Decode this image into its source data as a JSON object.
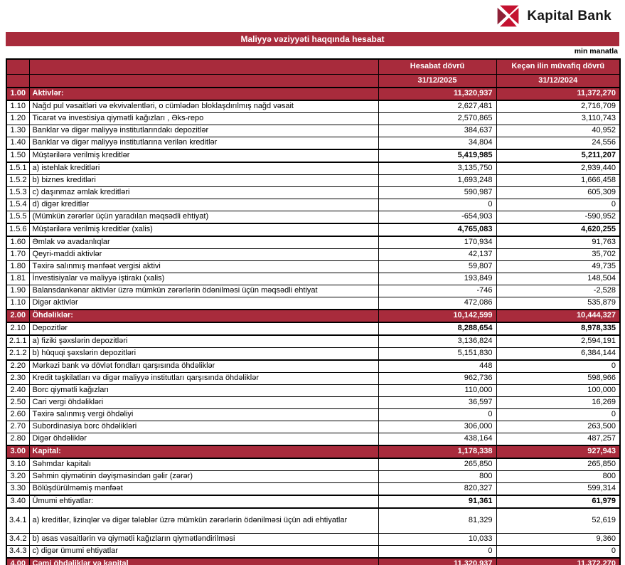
{
  "brand": {
    "name": "Kapital Bank"
  },
  "title": "Maliyyə vəziyyəti haqqında hesabat",
  "unit_note": "min manatla",
  "colors": {
    "accent_red": "#A82B3C",
    "logo_bright_red": "#C41230",
    "logo_dark_red": "#8E2137"
  },
  "table": {
    "col_headers": {
      "period_current": "Hesabat dövrü",
      "period_prior": "Keçən ilin müvafiq dövrü",
      "date_current": "31/12/2025",
      "date_prior": "31/12/2024"
    },
    "rows": [
      {
        "no": "1.00",
        "label": "Aktivlər:",
        "v1": "11,320,937",
        "v2": "11,372,270",
        "style": "section"
      },
      {
        "no": "1.10",
        "label": "Nağd pul vəsaitləri və ekvivalentləri, o cümlədən bloklaşdırılmış nağd vəsait",
        "v1": "2,627,481",
        "v2": "2,716,709"
      },
      {
        "no": "1.20",
        "label": "Ticarət və investisiya qiymətli kağızları , Əks-repo",
        "v1": "2,570,865",
        "v2": "3,110,743"
      },
      {
        "no": "1.30",
        "label": "Banklar və digər maliyyə institutlarındakı depozitlər",
        "v1": "384,637",
        "v2": "40,952"
      },
      {
        "no": "1.40",
        "label": "Banklar və digər maliyyə institutlarına verilən kreditlər",
        "v1": "34,804",
        "v2": "24,556"
      },
      {
        "no": "1.50",
        "label": "Müştərilərə verilmiş kreditlər",
        "v1": "5,419,985",
        "v2": "5,211,207",
        "style": "subtotal"
      },
      {
        "no": "1.5.1",
        "label": "a) istehlak kreditləri",
        "v1": "3,135,750",
        "v2": "2,939,440"
      },
      {
        "no": "1.5.2",
        "label": "b) biznes kreditləri",
        "v1": "1,693,248",
        "v2": "1,666,458"
      },
      {
        "no": "1.5.3",
        "label": "c) daşınmaz əmlak kreditləri",
        "v1": "590,987",
        "v2": "605,309"
      },
      {
        "no": "1.5.4",
        "label": "d) digər kreditlər",
        "v1": "0",
        "v2": "0"
      },
      {
        "no": "1.5.5",
        "label": "(Mümkün zərərlər üçün yaradılan məqsədli ehtiyat)",
        "v1": "-654,903",
        "v2": "-590,952"
      },
      {
        "no": "1.5.6",
        "label": "Müştərilərə verilmiş kreditlər (xalis)",
        "v1": "4,765,083",
        "v2": "4,620,255",
        "style": "subtotal"
      },
      {
        "no": "1.60",
        "label": "Əmlak və avadanlıqlar",
        "v1": "170,934",
        "v2": "91,763"
      },
      {
        "no": "1.70",
        "label": "Qeyri-maddi aktivlər",
        "v1": "42,137",
        "v2": "35,702"
      },
      {
        "no": "1.80",
        "label": "Təxirə salınmış mənfəət vergisi aktivi",
        "v1": "59,807",
        "v2": "49,735"
      },
      {
        "no": "1.81",
        "label": "İnvestisiyalar və maliyyə iştirakı (xalis)",
        "v1": "193,849",
        "v2": "148,504"
      },
      {
        "no": "1.90",
        "label": "Balansdankənar aktivlər üzrə mümkün zərərlərin ödənilməsi üçün məqsədli ehtiyat",
        "v1": "-746",
        "v2": "-2,528"
      },
      {
        "no": "1.10",
        "label": "Digər aktivlər",
        "v1": "472,086",
        "v2": "535,879"
      },
      {
        "no": "2.00",
        "label": "Öhdəliklər:",
        "v1": "10,142,599",
        "v2": "10,444,327",
        "style": "section"
      },
      {
        "no": "2.10",
        "label": "Depozitlər",
        "v1": "8,288,654",
        "v2": "8,978,335",
        "style": "subtotal"
      },
      {
        "no": "2.1.1",
        "label": "a) fiziki şəxslərin depozitləri",
        "v1": "3,136,824",
        "v2": "2,594,191"
      },
      {
        "no": "2.1.2",
        "label": "b) hüquqi şəxslərin depozitləri",
        "v1": "5,151,830",
        "v2": "6,384,144"
      },
      {
        "no": "2.20",
        "label": "Mərkəzi bank və dövlət fondları qarşısında öhdəliklər",
        "v1": "448",
        "v2": "0",
        "style": "sep"
      },
      {
        "no": "2.30",
        "label": "Kredit təşkilatları və digər maliyyə institutları qarşısında öhdəliklər",
        "v1": "962,736",
        "v2": "598,966"
      },
      {
        "no": "2.40",
        "label": "Borc qiymətli kağızları",
        "v1": "110,000",
        "v2": "100,000"
      },
      {
        "no": "2.50",
        "label": "Cari vergi öhdəlikləri",
        "v1": "36,597",
        "v2": "16,269"
      },
      {
        "no": "2.60",
        "label": "Təxirə salınmış vergi öhdəliyi",
        "v1": "0",
        "v2": "0"
      },
      {
        "no": "2.70",
        "label": "Subordinasiya borc öhdəlikləri",
        "v1": "306,000",
        "v2": "263,500"
      },
      {
        "no": "2.80",
        "label": "Digər öhdəliklər",
        "v1": "438,164",
        "v2": "487,257"
      },
      {
        "no": "3.00",
        "label": "Kapital:",
        "v1": "1,178,338",
        "v2": "927,943",
        "style": "section"
      },
      {
        "no": "3.10",
        "label": "Səhmdar kapitalı",
        "v1": "265,850",
        "v2": "265,850"
      },
      {
        "no": "3.20",
        "label": "Səhmin qiymətinin dəyişməsindən gəlir (zərər)",
        "v1": "800",
        "v2": "800"
      },
      {
        "no": "3.30",
        "label": "Bölüşdürülməmiş mənfəət",
        "v1": "820,327",
        "v2": "599,314"
      },
      {
        "no": "3.40",
        "label": "Ümumi ehtiyatlar:",
        "v1": "91,361",
        "v2": "61,979",
        "style": "subtotal"
      },
      {
        "no": "3.4.1",
        "label": "a) kreditlər, lizinqlər və digər tələblər üzrə mümkün zərərlərin ödənilməsi üçün adi ehtiyatlar",
        "v1": "81,329",
        "v2": "52,619",
        "style": "tall"
      },
      {
        "no": "3.4.2",
        "label": "b) əsas vəsaitlərin və qiymətli kağızların qiymətləndirilməsi",
        "v1": "10,033",
        "v2": "9,360"
      },
      {
        "no": "3.4.3",
        "label": "c) digər ümumi ehtiyatlar",
        "v1": "0",
        "v2": "0"
      },
      {
        "no": "4.00",
        "label": "Cəmi öhdəliklər və kapital",
        "v1": "11,320,937",
        "v2": "11,372,270",
        "style": "section"
      }
    ]
  }
}
